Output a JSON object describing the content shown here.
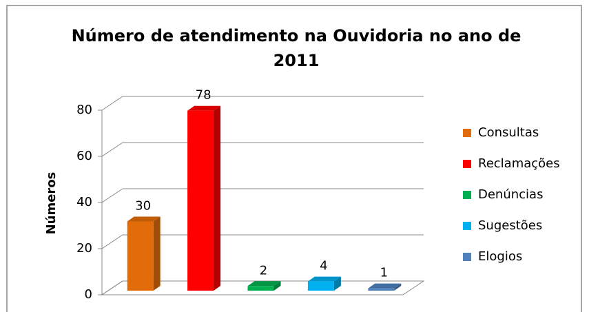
{
  "chart_data": {
    "type": "bar3d",
    "title": "Número de atendimento na Ouvidoria no ano de 2011",
    "y_label": "Números",
    "ylim": [
      0,
      80
    ],
    "yticks": [
      0,
      20,
      40,
      60,
      80
    ],
    "grid": true,
    "legend": "right",
    "series": [
      {
        "name": "Consultas",
        "color": "#e36c0a",
        "values": [
          30
        ]
      },
      {
        "name": "Reclamações",
        "color": "#ff0000",
        "values": [
          78
        ]
      },
      {
        "name": "Denúncias",
        "color": "#00b050",
        "values": [
          2
        ]
      },
      {
        "name": "Sugestões",
        "color": "#00b0f0",
        "values": [
          4
        ]
      },
      {
        "name": "Elogios",
        "color": "#4f81bd",
        "values": [
          1
        ]
      }
    ]
  }
}
